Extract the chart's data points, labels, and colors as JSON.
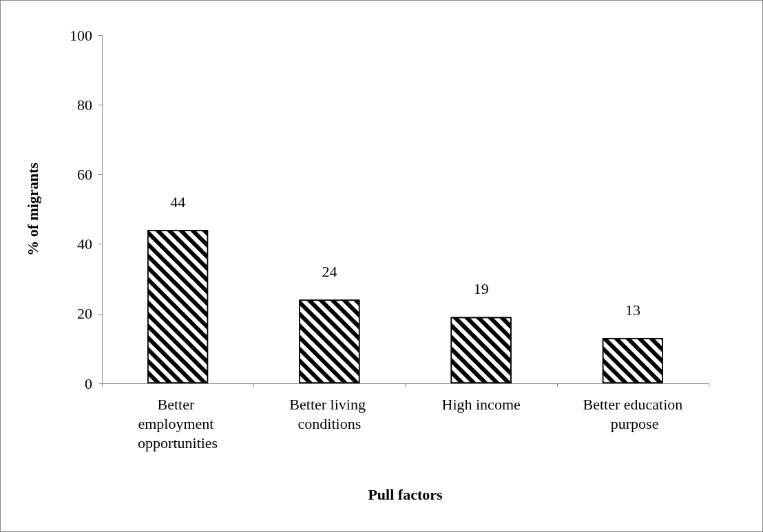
{
  "chart_data": {
    "type": "bar",
    "xlabel": "Pull factors",
    "ylabel": "% of migrants",
    "categories": [
      "Better employment opportunities",
      "Better living conditions",
      "High income",
      "Better education purpose"
    ],
    "values": [
      44,
      24,
      19,
      13
    ],
    "color": "#000000",
    "ylim": [
      0,
      100
    ],
    "yticks": [
      0,
      20,
      40,
      60,
      80,
      100
    ],
    "grid": false,
    "data_labels": true
  }
}
